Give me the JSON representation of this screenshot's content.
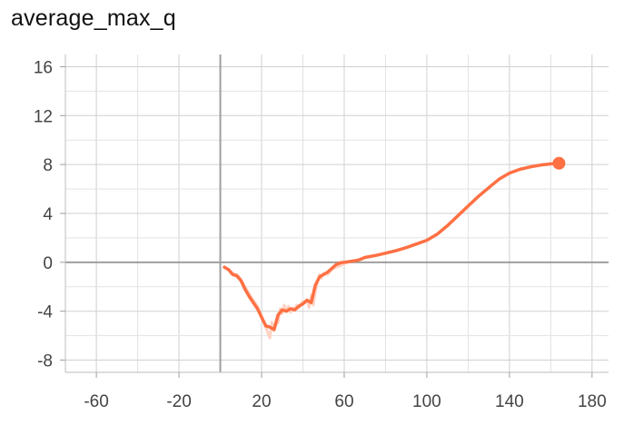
{
  "chart_data": {
    "type": "line",
    "title": "average_max_q",
    "xlabel": "",
    "ylabel": "",
    "xlim": [
      -75,
      188
    ],
    "ylim": [
      -9,
      17
    ],
    "x_ticks": [
      -60,
      -20,
      20,
      60,
      100,
      140,
      180
    ],
    "y_ticks": [
      16,
      12,
      8,
      4,
      0,
      -4,
      -8
    ],
    "grid": true,
    "series_color": "#ff7043",
    "raw_color": "#ffd3c4",
    "series": [
      {
        "raw": {
          "x": [
            2,
            4,
            6,
            8,
            10,
            12,
            14,
            16,
            18,
            20,
            22,
            24,
            25,
            26,
            27,
            28,
            29,
            30,
            31,
            32,
            33,
            34,
            35,
            36,
            37,
            38,
            39,
            40,
            41,
            42,
            43,
            44,
            45,
            46,
            47,
            48,
            49,
            50,
            52,
            54,
            56,
            58,
            60,
            62
          ],
          "y": [
            -0.4,
            -0.6,
            -0.9,
            -1.0,
            -1.4,
            -2.0,
            -2.6,
            -3.1,
            -3.6,
            -4.4,
            -5.3,
            -6.2,
            -4.9,
            -5.6,
            -5.1,
            -4.9,
            -3.8,
            -4.2,
            -3.5,
            -4.0,
            -3.6,
            -4.1,
            -3.7,
            -3.9,
            -3.5,
            -3.7,
            -3.4,
            -3.2,
            -3.3,
            -3.1,
            -3.7,
            -2.7,
            -3.5,
            -2.4,
            -1.6,
            -1.0,
            -1.3,
            -0.9,
            -1.0,
            -0.6,
            -0.4,
            -0.3,
            -0.1,
            0.0
          ]
        },
        "smoothed": {
          "x": [
            2,
            4,
            6,
            8,
            10,
            12,
            14,
            16,
            18,
            20,
            22,
            24,
            26,
            28,
            30,
            32,
            34,
            36,
            38,
            40,
            42,
            44,
            46,
            48,
            50,
            52,
            54,
            56,
            58,
            60,
            62,
            64,
            66,
            68,
            70,
            75,
            80,
            85,
            90,
            95,
            100,
            105,
            110,
            115,
            120,
            125,
            130,
            135,
            140,
            145,
            150,
            155,
            160,
            164
          ],
          "y": [
            -0.4,
            -0.6,
            -1.0,
            -1.1,
            -1.5,
            -2.2,
            -2.8,
            -3.3,
            -3.8,
            -4.5,
            -5.2,
            -5.3,
            -5.5,
            -4.3,
            -3.9,
            -4.0,
            -3.8,
            -3.9,
            -3.6,
            -3.4,
            -3.1,
            -3.3,
            -1.9,
            -1.2,
            -1.0,
            -0.8,
            -0.5,
            -0.2,
            -0.05,
            0.0,
            0.05,
            0.1,
            0.15,
            0.25,
            0.4,
            0.55,
            0.75,
            0.95,
            1.2,
            1.5,
            1.8,
            2.3,
            3.0,
            3.8,
            4.6,
            5.4,
            6.1,
            6.8,
            7.3,
            7.6,
            7.8,
            7.95,
            8.05,
            8.1
          ]
        }
      }
    ]
  }
}
